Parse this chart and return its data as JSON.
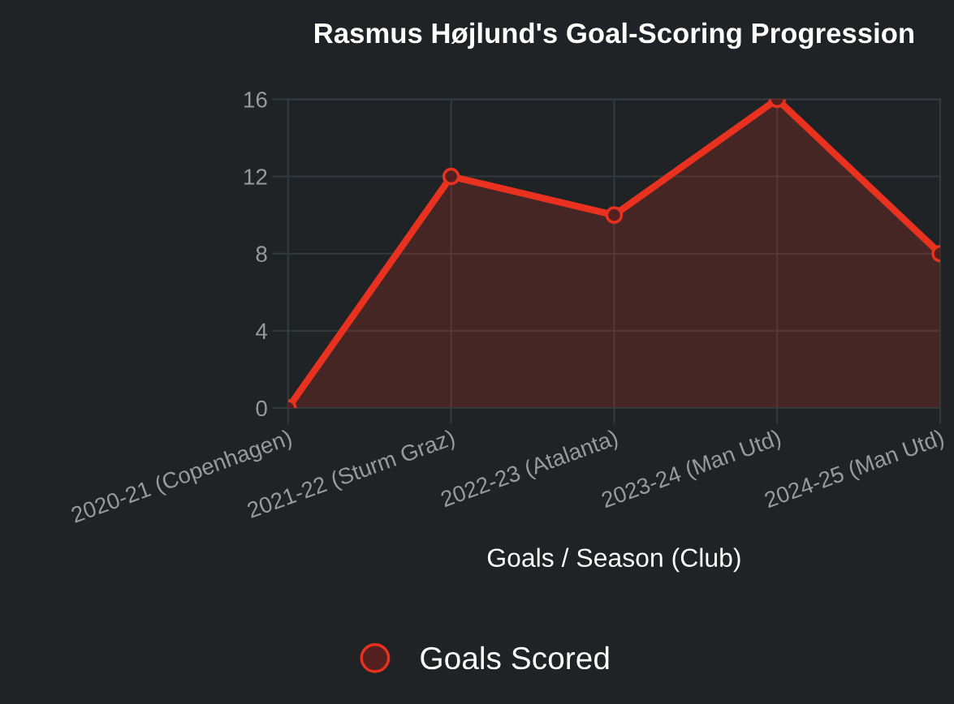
{
  "chart_data": {
    "type": "area",
    "title": "Rasmus Højlund's Goal-Scoring Progression",
    "xlabel": "Goals / Season (Club)",
    "categories": [
      "2020-21 (Copenhagen)",
      "2021-22 (Sturm Graz)",
      "2022-23 (Atalanta)",
      "2023-24 (Man Utd)",
      "2024-25 (Man Utd)"
    ],
    "series": [
      {
        "name": "Goals Scored",
        "color": "#e8321f",
        "values": [
          0,
          12,
          10,
          16,
          8
        ]
      }
    ],
    "ylim": [
      0,
      16
    ],
    "yticks": [
      0,
      4,
      8,
      12,
      16
    ],
    "grid": true,
    "legend": "bottom",
    "marker": "circle",
    "line_style": "solid"
  }
}
